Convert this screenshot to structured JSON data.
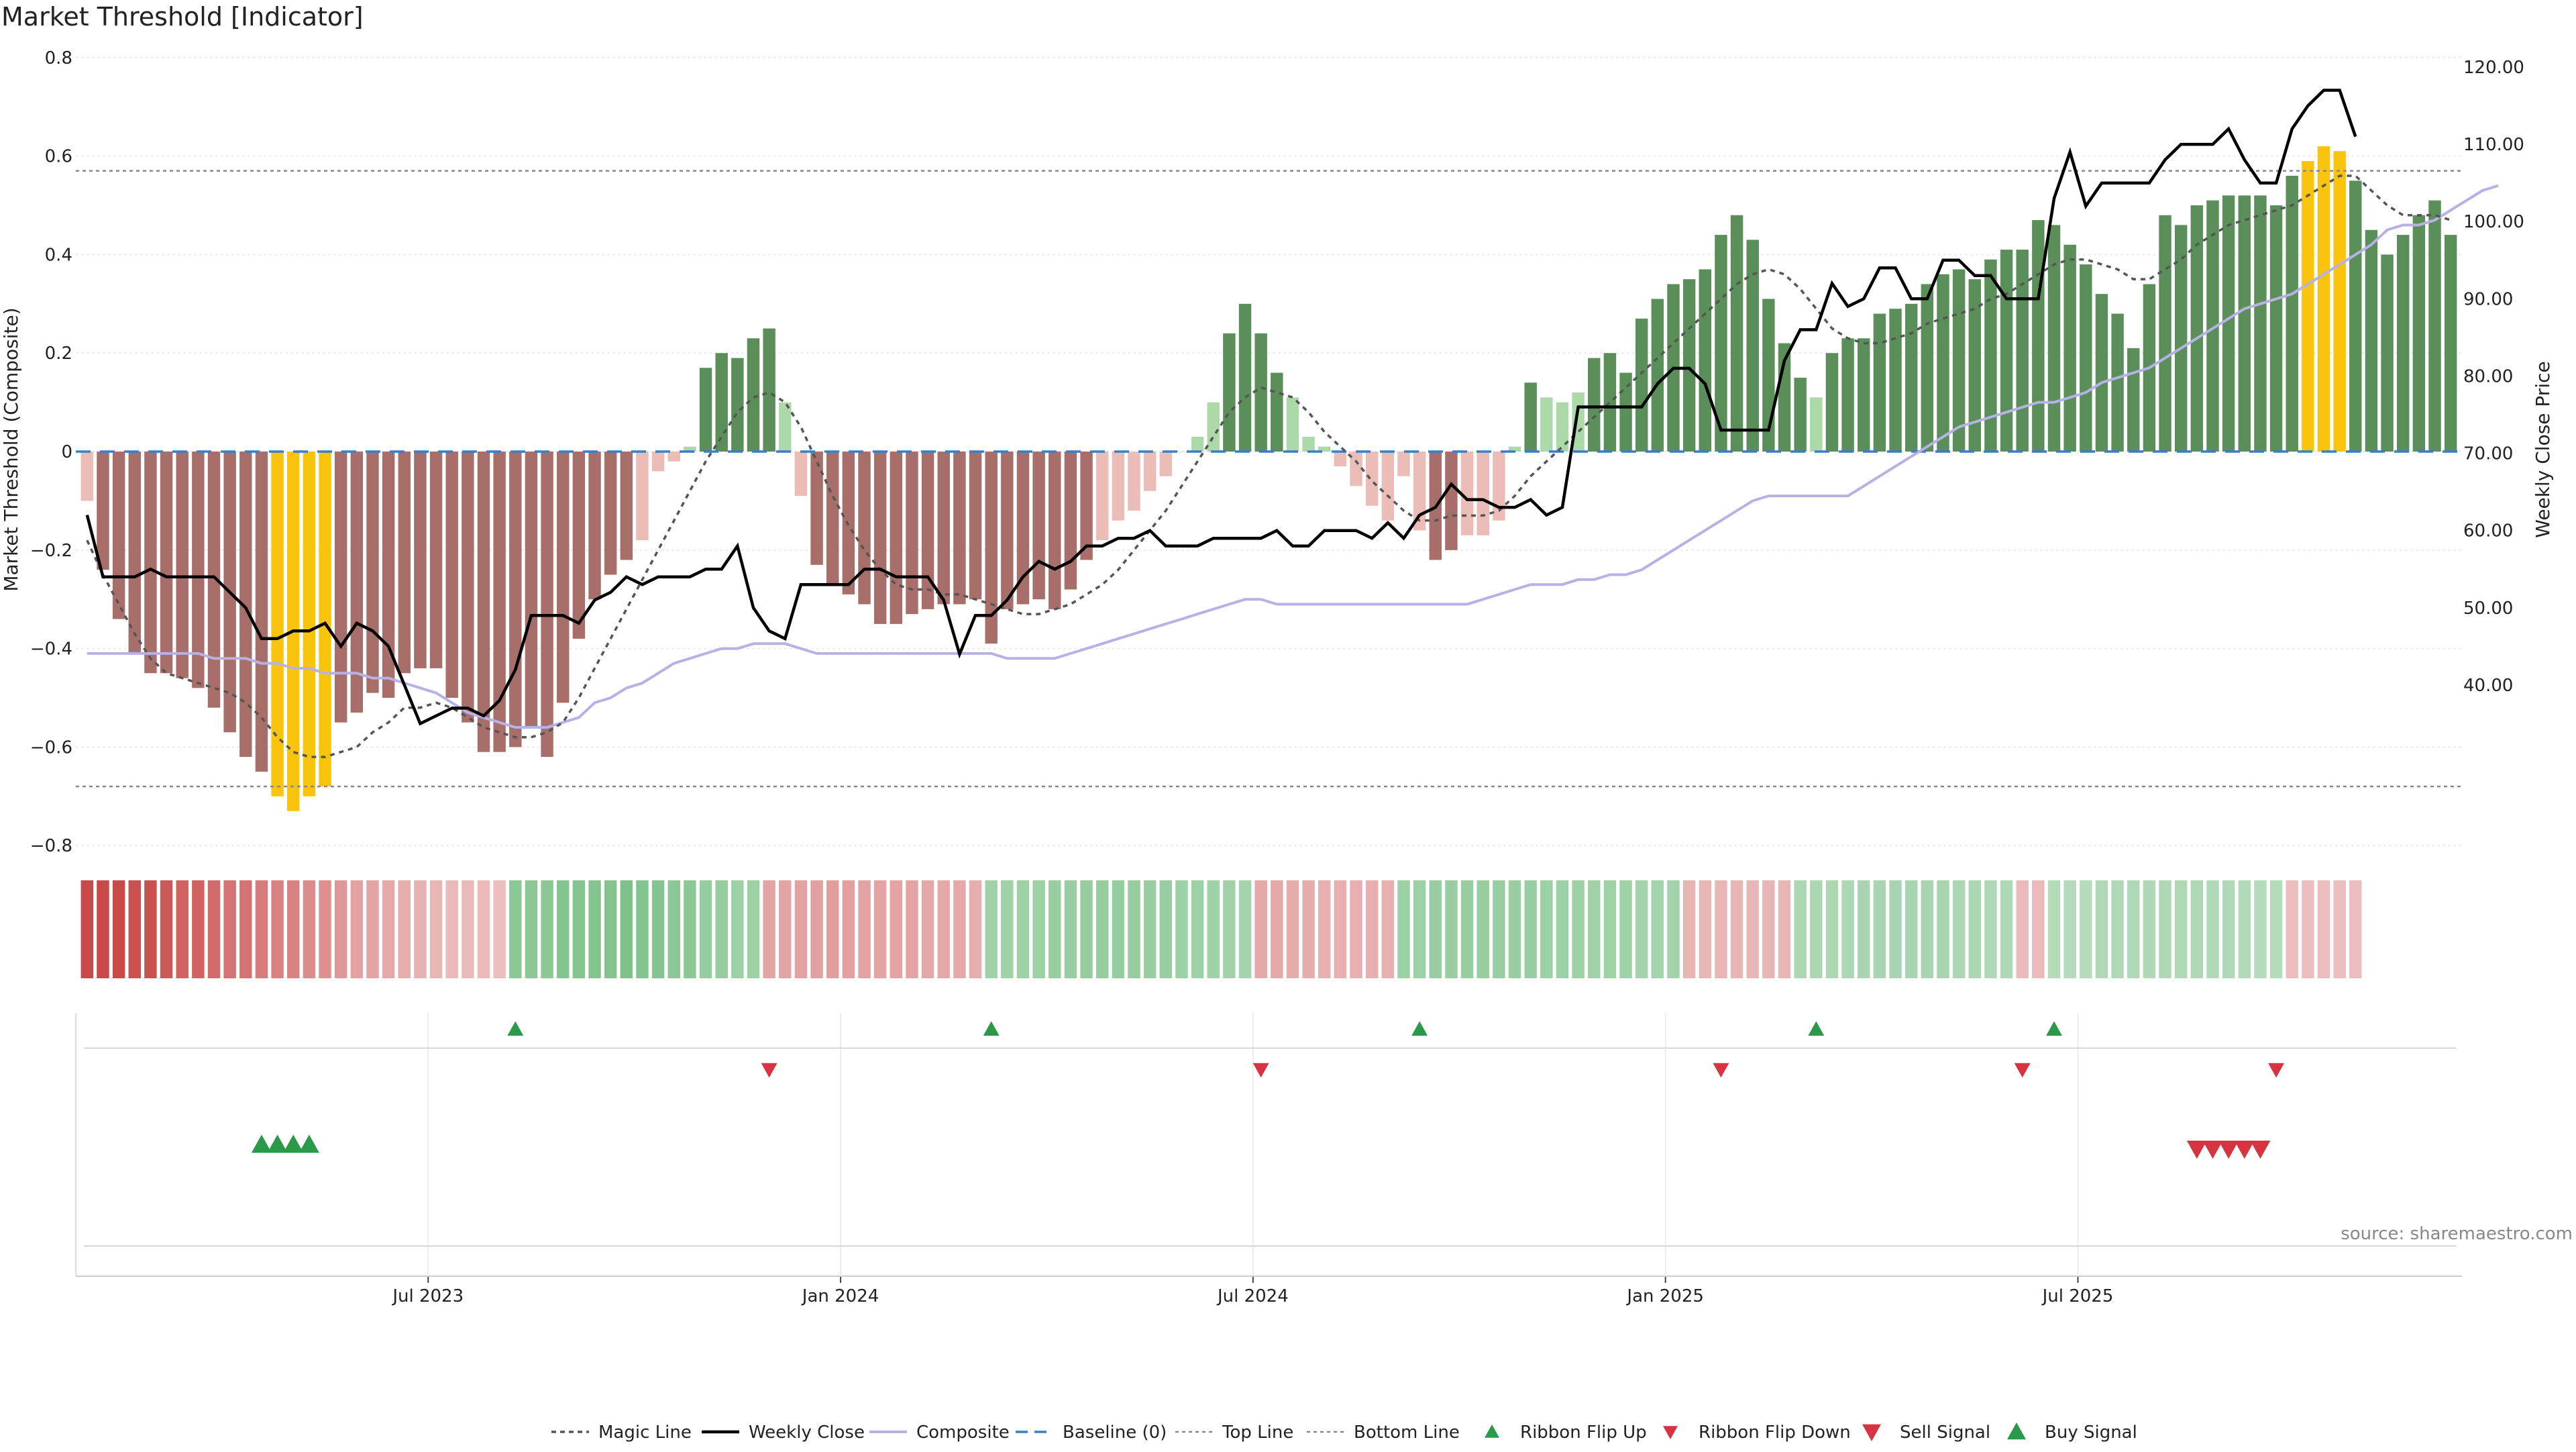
{
  "title": "Market Threshold [Indicator]",
  "source": "source: sharemaestro.com",
  "colors": {
    "pos_strong": "#5a8f5a",
    "pos_weak": "#acd9a8",
    "neg_strong": "#a86f6a",
    "neg_weak": "#ecbcb7",
    "extreme": "#fbc40c",
    "magic": "#555555",
    "close": "#000000",
    "composite": "#b7b1e6",
    "baseline": "#3a7ec4",
    "buy": "#2a9a48",
    "sell": "#d63440"
  },
  "chart_data": {
    "type": "bar",
    "ylabel": "Market Threshold (Composite)",
    "ylabel_right": "Weekly Close Price",
    "ylim": [
      -0.8,
      0.8
    ],
    "ylim_right": [
      30,
      120
    ],
    "yticks": [
      "0.8",
      "0.6",
      "0.4",
      "0.2",
      "0",
      "−0.2",
      "−0.4",
      "−0.6",
      "−0.8"
    ],
    "yticks_right": [
      "120.00",
      "110.00",
      "100.00",
      "90.00",
      "80.00",
      "70.00",
      "60.00",
      "50.00",
      "40.00"
    ],
    "xticks": [
      "Jul 2023",
      "Jan 2024",
      "Jul 2024",
      "Jan 2025",
      "Jul 2025"
    ],
    "top_line": 0.57,
    "bottom_line": -0.68,
    "bars": [
      -0.1,
      -0.24,
      -0.34,
      -0.41,
      -0.45,
      -0.45,
      -0.46,
      -0.48,
      -0.52,
      -0.57,
      -0.62,
      -0.65,
      -0.7,
      -0.73,
      -0.7,
      -0.68,
      -0.55,
      -0.53,
      -0.49,
      -0.5,
      -0.45,
      -0.44,
      -0.44,
      -0.5,
      -0.55,
      -0.61,
      -0.61,
      -0.6,
      -0.56,
      -0.62,
      -0.51,
      -0.38,
      -0.3,
      -0.25,
      -0.22,
      -0.18,
      -0.04,
      -0.02,
      0.01,
      0.17,
      0.2,
      0.19,
      0.23,
      0.25,
      0.1,
      -0.09,
      -0.23,
      -0.27,
      -0.29,
      -0.31,
      -0.35,
      -0.35,
      -0.33,
      -0.32,
      -0.31,
      -0.31,
      -0.3,
      -0.39,
      -0.32,
      -0.31,
      -0.3,
      -0.32,
      -0.28,
      -0.22,
      -0.18,
      -0.14,
      -0.12,
      -0.08,
      -0.05,
      0.0,
      0.03,
      0.1,
      0.24,
      0.3,
      0.24,
      0.16,
      0.11,
      0.03,
      0.01,
      -0.03,
      -0.07,
      -0.11,
      -0.14,
      -0.05,
      -0.16,
      -0.22,
      -0.2,
      -0.17,
      -0.17,
      -0.14,
      0.01,
      0.14,
      0.11,
      0.1,
      0.12,
      0.19,
      0.2,
      0.16,
      0.27,
      0.31,
      0.34,
      0.35,
      0.37,
      0.44,
      0.48,
      0.43,
      0.31,
      0.22,
      0.15,
      0.11,
      0.2,
      0.23,
      0.23,
      0.28,
      0.29,
      0.3,
      0.34,
      0.36,
      0.37,
      0.35,
      0.39,
      0.41,
      0.41,
      0.47,
      0.46,
      0.42,
      0.38,
      0.32,
      0.28,
      0.21,
      0.34,
      0.48,
      0.46,
      0.5,
      0.51,
      0.52,
      0.52,
      0.52,
      0.5,
      0.56,
      0.59,
      0.62,
      0.61,
      0.55,
      0.45,
      0.4,
      0.44,
      0.48,
      0.51,
      0.44
    ],
    "magic_line": [
      -0.18,
      -0.25,
      -0.31,
      -0.37,
      -0.42,
      -0.45,
      -0.46,
      -0.47,
      -0.48,
      -0.49,
      -0.51,
      -0.54,
      -0.58,
      -0.61,
      -0.62,
      -0.62,
      -0.61,
      -0.6,
      -0.57,
      -0.55,
      -0.52,
      -0.52,
      -0.51,
      -0.52,
      -0.54,
      -0.56,
      -0.57,
      -0.58,
      -0.58,
      -0.57,
      -0.55,
      -0.5,
      -0.44,
      -0.38,
      -0.32,
      -0.26,
      -0.2,
      -0.14,
      -0.08,
      -0.02,
      0.03,
      0.08,
      0.11,
      0.12,
      0.1,
      0.05,
      -0.02,
      -0.09,
      -0.15,
      -0.2,
      -0.24,
      -0.27,
      -0.28,
      -0.28,
      -0.29,
      -0.29,
      -0.3,
      -0.31,
      -0.32,
      -0.33,
      -0.33,
      -0.32,
      -0.31,
      -0.29,
      -0.27,
      -0.24,
      -0.2,
      -0.16,
      -0.12,
      -0.07,
      -0.02,
      0.03,
      0.08,
      0.11,
      0.13,
      0.12,
      0.11,
      0.08,
      0.04,
      0.01,
      -0.02,
      -0.06,
      -0.09,
      -0.12,
      -0.14,
      -0.14,
      -0.13,
      -0.13,
      -0.13,
      -0.12,
      -0.09,
      -0.05,
      -0.02,
      0.01,
      0.04,
      0.07,
      0.1,
      0.13,
      0.16,
      0.19,
      0.22,
      0.25,
      0.28,
      0.31,
      0.34,
      0.36,
      0.37,
      0.36,
      0.33,
      0.29,
      0.25,
      0.23,
      0.22,
      0.22,
      0.23,
      0.24,
      0.26,
      0.27,
      0.28,
      0.29,
      0.31,
      0.32,
      0.34,
      0.36,
      0.38,
      0.39,
      0.39,
      0.38,
      0.37,
      0.35,
      0.35,
      0.37,
      0.39,
      0.42,
      0.44,
      0.46,
      0.47,
      0.48,
      0.49,
      0.5,
      0.52,
      0.54,
      0.56,
      0.56,
      0.53,
      0.5,
      0.48,
      0.48,
      0.48,
      0.47
    ],
    "composite": [
      -0.41,
      -0.41,
      -0.41,
      -0.41,
      -0.41,
      -0.41,
      -0.41,
      -0.41,
      -0.42,
      -0.42,
      -0.42,
      -0.43,
      -0.43,
      -0.44,
      -0.44,
      -0.45,
      -0.45,
      -0.45,
      -0.46,
      -0.46,
      -0.47,
      -0.48,
      -0.49,
      -0.51,
      -0.53,
      -0.54,
      -0.55,
      -0.56,
      -0.56,
      -0.56,
      -0.55,
      -0.54,
      -0.51,
      -0.5,
      -0.48,
      -0.47,
      -0.45,
      -0.43,
      -0.42,
      -0.41,
      -0.4,
      -0.4,
      -0.39,
      -0.39,
      -0.39,
      -0.4,
      -0.41,
      -0.41,
      -0.41,
      -0.41,
      -0.41,
      -0.41,
      -0.41,
      -0.41,
      -0.41,
      -0.41,
      -0.41,
      -0.41,
      -0.42,
      -0.42,
      -0.42,
      -0.42,
      -0.41,
      -0.4,
      -0.39,
      -0.38,
      -0.37,
      -0.36,
      -0.35,
      -0.34,
      -0.33,
      -0.32,
      -0.31,
      -0.3,
      -0.3,
      -0.31,
      -0.31,
      -0.31,
      -0.31,
      -0.31,
      -0.31,
      -0.31,
      -0.31,
      -0.31,
      -0.31,
      -0.31,
      -0.31,
      -0.31,
      -0.3,
      -0.29,
      -0.28,
      -0.27,
      -0.27,
      -0.27,
      -0.26,
      -0.26,
      -0.25,
      -0.25,
      -0.24,
      -0.22,
      -0.2,
      -0.18,
      -0.16,
      -0.14,
      -0.12,
      -0.1,
      -0.09,
      -0.09,
      -0.09,
      -0.09,
      -0.09,
      -0.09,
      -0.07,
      -0.05,
      -0.03,
      -0.01,
      0.01,
      0.03,
      0.05,
      0.06,
      0.07,
      0.08,
      0.09,
      0.1,
      0.1,
      0.11,
      0.12,
      0.14,
      0.15,
      0.16,
      0.17,
      0.19,
      0.21,
      0.23,
      0.25,
      0.27,
      0.29,
      0.3,
      0.31,
      0.32,
      0.34,
      0.36,
      0.38,
      0.4,
      0.42,
      0.45,
      0.46,
      0.46,
      0.47,
      0.49,
      0.51,
      0.53,
      0.54
    ],
    "weekly_close": [
      62,
      54,
      54,
      54,
      55,
      54,
      54,
      54,
      54,
      52,
      50,
      46,
      46,
      47,
      47,
      48,
      45,
      48,
      47,
      45,
      40,
      35,
      36,
      37,
      37,
      36,
      38,
      42,
      49,
      49,
      49,
      48,
      51,
      52,
      54,
      53,
      54,
      54,
      54,
      55,
      55,
      58,
      50,
      47,
      46,
      53,
      53,
      53,
      53,
      55,
      55,
      54,
      54,
      54,
      51,
      44,
      49,
      49,
      51,
      54,
      56,
      55,
      56,
      58,
      58,
      59,
      59,
      60,
      58,
      58,
      58,
      59,
      59,
      59,
      59,
      60,
      58,
      58,
      60,
      60,
      60,
      59,
      61,
      59,
      62,
      63,
      66,
      64,
      64,
      63,
      63,
      64,
      62,
      63,
      76,
      76,
      76,
      76,
      76,
      79,
      81,
      81,
      79,
      73,
      73,
      73,
      73,
      82,
      86,
      86,
      92,
      89,
      90,
      94,
      94,
      90,
      90,
      95,
      95,
      93,
      93,
      90,
      90,
      90,
      103,
      109,
      102,
      105,
      105,
      105,
      105,
      108,
      110,
      110,
      110,
      112,
      108,
      105,
      105,
      112,
      115,
      117,
      117,
      111
    ],
    "ribbon": [
      -0.85,
      -0.85,
      -0.85,
      -0.8,
      -0.8,
      -0.75,
      -0.7,
      -0.7,
      -0.65,
      -0.6,
      -0.6,
      -0.55,
      -0.5,
      -0.5,
      -0.45,
      -0.42,
      -0.38,
      -0.32,
      -0.3,
      -0.27,
      -0.25,
      -0.22,
      -0.2,
      -0.18,
      -0.18,
      -0.16,
      -0.15,
      0.5,
      0.5,
      0.5,
      0.55,
      0.55,
      0.55,
      0.55,
      0.6,
      0.55,
      0.55,
      0.5,
      0.5,
      0.45,
      0.45,
      0.4,
      0.4,
      -0.3,
      -0.3,
      -0.32,
      -0.33,
      -0.34,
      -0.33,
      -0.32,
      -0.3,
      -0.3,
      -0.3,
      -0.28,
      -0.27,
      -0.27,
      -0.25,
      0.38,
      0.38,
      0.4,
      0.4,
      0.42,
      0.42,
      0.45,
      0.45,
      0.45,
      0.45,
      0.42,
      0.42,
      0.4,
      0.4,
      0.38,
      0.38,
      0.35,
      -0.27,
      -0.27,
      -0.26,
      -0.25,
      -0.24,
      -0.24,
      -0.24,
      -0.23,
      -0.23,
      0.4,
      0.4,
      0.42,
      0.42,
      0.43,
      0.43,
      0.43,
      0.42,
      0.42,
      0.4,
      0.4,
      0.4,
      0.38,
      0.38,
      0.38,
      0.36,
      0.35,
      0.35,
      -0.2,
      -0.2,
      -0.2,
      -0.2,
      -0.2,
      -0.2,
      -0.2,
      0.3,
      0.3,
      0.3,
      0.3,
      0.32,
      0.32,
      0.33,
      0.33,
      0.32,
      0.32,
      0.3,
      0.3,
      0.28,
      0.28,
      -0.17,
      -0.17,
      0.25,
      0.25,
      0.25,
      0.27,
      0.27,
      0.28,
      0.28,
      0.28,
      0.28,
      0.28,
      0.27,
      0.27,
      0.26,
      0.25,
      0.25,
      -0.15,
      -0.15,
      -0.15,
      -0.15,
      -0.15
    ],
    "ribbon_flip_up": [
      27,
      57,
      84,
      109,
      124
    ],
    "ribbon_flip_down": [
      43,
      74,
      103,
      122,
      138
    ],
    "buy_signal": [
      11,
      12,
      13,
      14
    ],
    "sell_signal": [
      133,
      134,
      135,
      136,
      137
    ],
    "legend": [
      "Magic Line",
      "Weekly Close",
      "Composite",
      "Baseline (0)",
      "Top Line",
      "Bottom Line",
      "Ribbon Flip Up",
      "Ribbon Flip Down",
      "Sell Signal",
      "Buy Signal"
    ]
  }
}
